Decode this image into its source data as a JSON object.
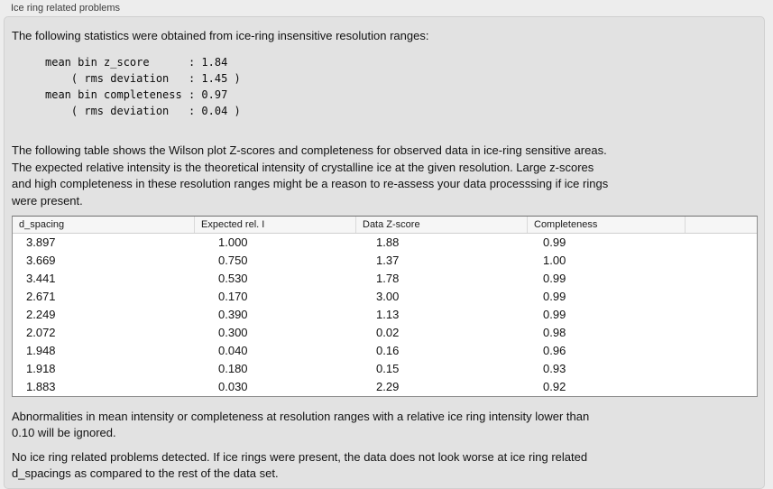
{
  "panel": {
    "title": "Ice ring related problems"
  },
  "intro": "The following statistics were obtained from ice-ring insensitive resolution ranges:",
  "stats_block": "mean bin z_score      : 1.84\n    ( rms deviation   : 1.45 )\nmean bin completeness : 0.97\n    ( rms deviation   : 0.04 )",
  "stats": {
    "mean_bin_z_score": "1.84",
    "z_score_rms_deviation": "1.45",
    "mean_bin_completeness": "0.97",
    "completeness_rms_deviation": "0.04"
  },
  "table_intro": "The following table shows the Wilson plot Z-scores and completeness for observed data in ice-ring sensitive areas.\nThe expected relative intensity is the theoretical intensity of crystalline ice at the given resolution. Large z-scores\nand high completeness in these resolution ranges might be a reason to re-assess your data processsing if ice rings\nwere present.",
  "table": {
    "columns": [
      "d_spacing",
      "Expected rel. I",
      "Data Z-score",
      "Completeness",
      ""
    ],
    "rows": [
      [
        "3.897",
        "1.000",
        "1.88",
        "0.99"
      ],
      [
        "3.669",
        "0.750",
        "1.37",
        "1.00"
      ],
      [
        "3.441",
        "0.530",
        "1.78",
        "0.99"
      ],
      [
        "2.671",
        "0.170",
        "3.00",
        "0.99"
      ],
      [
        "2.249",
        "0.390",
        "1.13",
        "0.99"
      ],
      [
        "2.072",
        "0.300",
        "0.02",
        "0.98"
      ],
      [
        "1.948",
        "0.040",
        "0.16",
        "0.96"
      ],
      [
        "1.918",
        "0.180",
        "0.15",
        "0.93"
      ],
      [
        "1.883",
        "0.030",
        "2.29",
        "0.92"
      ]
    ]
  },
  "note_ignore": "Abnormalities in mean intensity or completeness at resolution ranges with a relative ice ring intensity lower than\n0.10 will be ignored.",
  "conclusion": "No ice ring related problems detected. If ice rings were present, the data does not look worse at ice ring related\nd_spacings as compared to the rest of the data set.",
  "colors": {
    "page_background": "#ededed",
    "panel_background": "#e2e2e2",
    "table_background": "#ffffff",
    "table_header_background": "#f6f6f6",
    "text": "#121212"
  }
}
